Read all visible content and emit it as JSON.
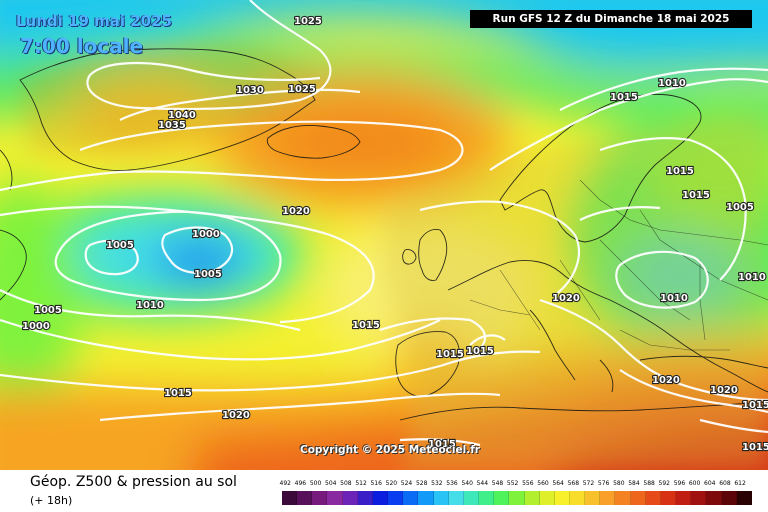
{
  "header": {
    "date_label": "Lundi 19 mai 2025",
    "time_label": "7:00 locale",
    "run_label": "Run GFS 12 Z du Dimanche 18 mai 2025"
  },
  "footer": {
    "product_title": "Géop. Z500 & pression au sol",
    "product_sub": "(+ 18h)"
  },
  "copyright": "Copyright © 2025 Meteociel.fr",
  "isobar_labels": [
    "1025",
    "1030",
    "1025",
    "1040",
    "1035",
    "1020",
    "1000",
    "1005",
    "1005",
    "1010",
    "1005",
    "1000",
    "1015",
    "1015",
    "1015",
    "1015",
    "1020",
    "1015",
    "1015",
    "1010",
    "1015",
    "1015",
    "1010",
    "1005",
    "1020",
    "1010",
    "1020",
    "1020",
    "1015",
    "1015"
  ],
  "scale": {
    "labels": [
      "492",
      "496",
      "500",
      "504",
      "508",
      "512",
      "516",
      "520",
      "524",
      "528",
      "532",
      "536",
      "540",
      "544",
      "548",
      "552",
      "556",
      "560",
      "564",
      "568",
      "572",
      "576",
      "580",
      "584",
      "588",
      "592",
      "596",
      "600",
      "604",
      "608",
      "612"
    ],
    "colors": [
      "#3b0a3b",
      "#57105a",
      "#761a7d",
      "#8a2aa0",
      "#6b23b8",
      "#3a1fc8",
      "#0b1ee0",
      "#0a3df0",
      "#0a6cf5",
      "#119af7",
      "#2ac3f5",
      "#44dde8",
      "#3fe8b8",
      "#3ff08a",
      "#4ef25a",
      "#7ff23c",
      "#b2f02f",
      "#dff02a",
      "#f8f02a",
      "#f8dd2a",
      "#f8c02a",
      "#f8a02a",
      "#f48222",
      "#ee661c",
      "#e64a18",
      "#d83214",
      "#c01e12",
      "#a01210",
      "#7e0a0c",
      "#5c0508",
      "#2a0204"
    ]
  }
}
